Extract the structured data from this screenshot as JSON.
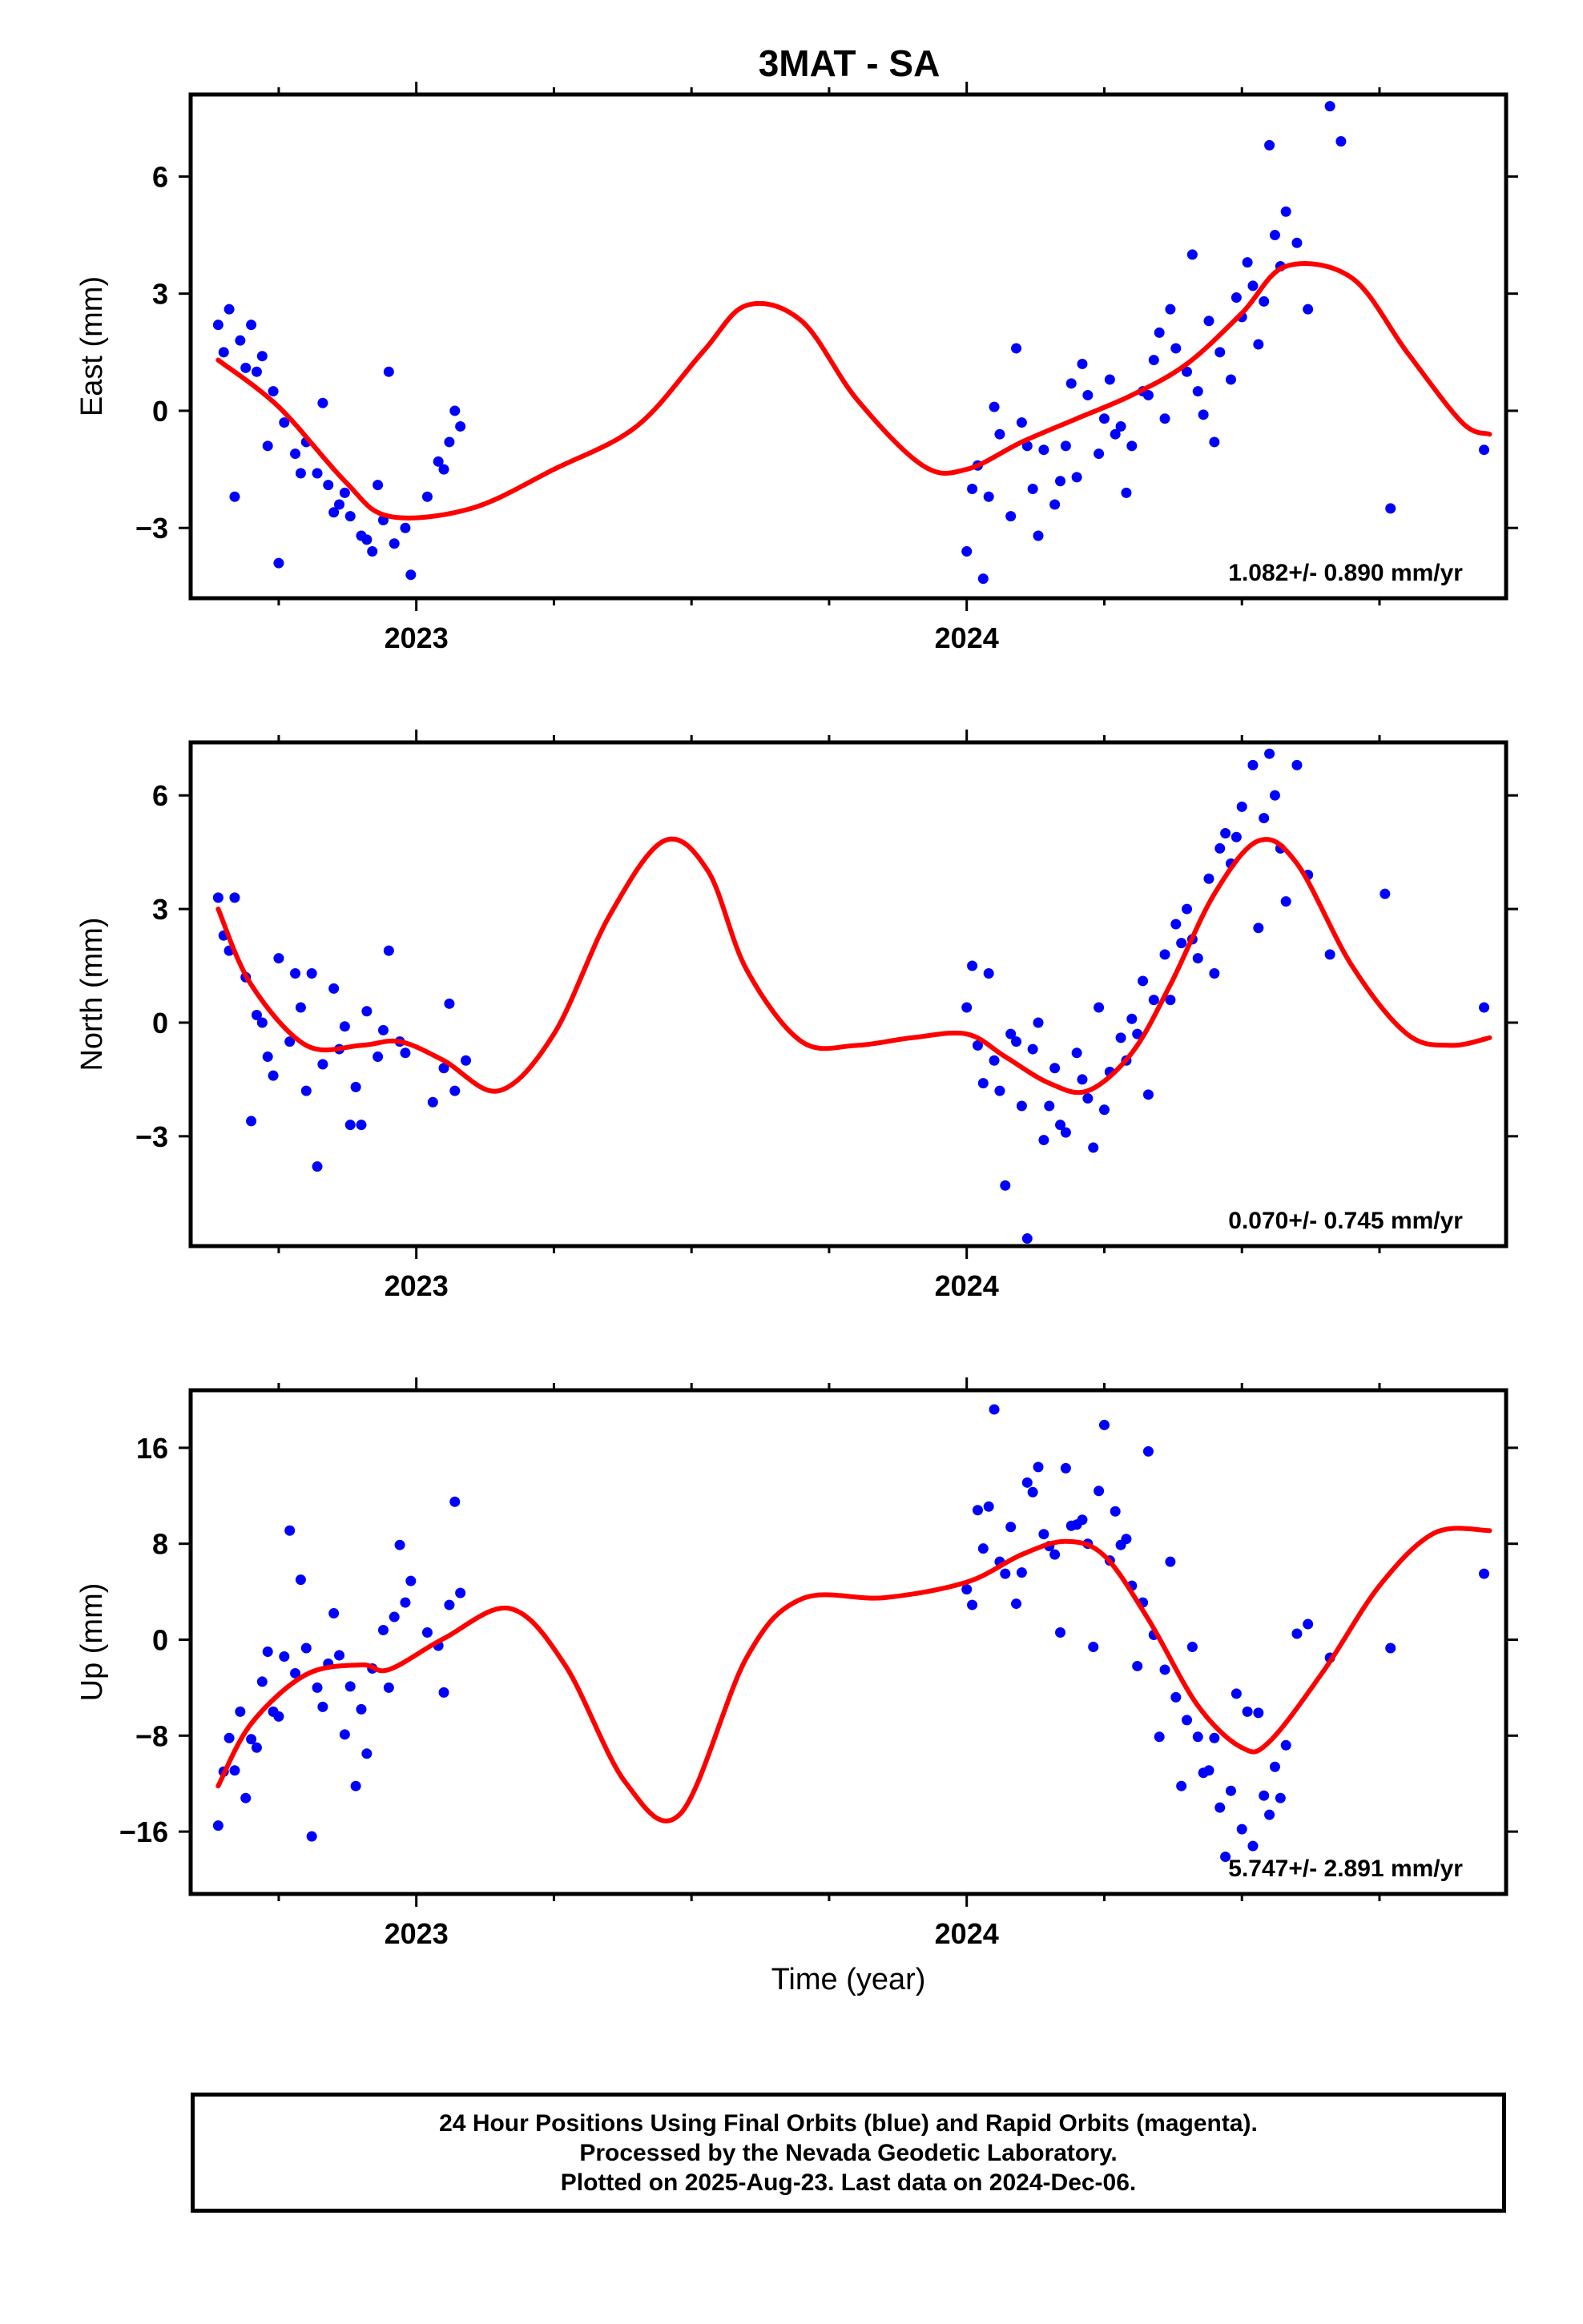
{
  "title": "3MAT - SA",
  "x_axis_label": "Time (year)",
  "footer": {
    "line1": "24 Hour Positions Using Final Orbits (blue) and Rapid Orbits (magenta).",
    "line2": "Processed by the Nevada Geodetic Laboratory.",
    "line3": "Plotted on 2025-Aug-23. Last data on 2024-Dec-06."
  },
  "colors": {
    "points": "#0000ff",
    "model": "#ff0000",
    "frame": "#000000"
  },
  "chart_data": [
    {
      "type": "scatter",
      "ylabel": "East (mm)",
      "xlim": [
        2022.59,
        2024.98
      ],
      "ylim": [
        -4.8,
        8.1
      ],
      "yticks": [
        -3,
        0,
        3,
        6
      ],
      "xticks": [
        2023,
        2024
      ],
      "rate_label": "1.082+/- 0.890 mm/yr",
      "model": {
        "x": [
          2022.64,
          2022.75,
          2022.87,
          2022.95,
          2023.1,
          2023.25,
          2023.4,
          2023.52,
          2023.6,
          2023.7,
          2023.8,
          2023.92,
          2024.0,
          2024.1,
          2024.2,
          2024.3,
          2024.4,
          2024.5,
          2024.58,
          2024.7,
          2024.8,
          2024.9,
          2024.95
        ],
        "y": [
          1.3,
          0.1,
          -1.8,
          -2.7,
          -2.5,
          -1.5,
          -0.4,
          1.5,
          2.7,
          2.3,
          0.3,
          -1.4,
          -1.5,
          -0.8,
          -0.2,
          0.4,
          1.2,
          2.5,
          3.7,
          3.4,
          1.5,
          -0.3,
          -0.6
        ]
      },
      "points": {
        "x": [
          2022.64,
          2022.65,
          2022.66,
          2022.68,
          2022.7,
          2022.72,
          2022.74,
          2022.76,
          2022.78,
          2022.8,
          2022.82,
          2022.84,
          2022.86,
          2022.88,
          2022.9,
          2022.92,
          2022.94,
          2022.96,
          2022.98,
          2023.02,
          2023.04,
          2023.06,
          2023.08,
          2022.67,
          2022.71,
          2022.75,
          2022.79,
          2022.83,
          2022.87,
          2022.91,
          2022.95,
          2022.99,
          2022.69,
          2022.73,
          2022.85,
          2022.93,
          2023.05,
          2023.07,
          2024.0,
          2024.02,
          2024.04,
          2024.06,
          2024.08,
          2024.1,
          2024.12,
          2024.14,
          2024.16,
          2024.18,
          2024.2,
          2024.22,
          2024.24,
          2024.26,
          2024.28,
          2024.3,
          2024.32,
          2024.34,
          2024.36,
          2024.38,
          2024.4,
          2024.42,
          2024.44,
          2024.46,
          2024.48,
          2024.5,
          2024.52,
          2024.54,
          2024.56,
          2024.58,
          2024.01,
          2024.05,
          2024.09,
          2024.13,
          2024.17,
          2024.21,
          2024.25,
          2024.29,
          2024.33,
          2024.37,
          2024.41,
          2024.45,
          2024.49,
          2024.53,
          2024.57,
          2024.03,
          2024.11,
          2024.19,
          2024.27,
          2024.35,
          2024.43,
          2024.51,
          2024.55,
          2024.6,
          2024.62,
          2024.66,
          2024.68,
          2024.77,
          2024.94
        ],
        "y": [
          2.2,
          1.5,
          2.6,
          1.8,
          2.2,
          1.4,
          0.5,
          -0.3,
          -1.1,
          -0.8,
          -1.6,
          -1.9,
          -2.4,
          -2.7,
          -3.2,
          -3.6,
          -2.8,
          -3.4,
          -3.0,
          -2.2,
          -1.3,
          -0.8,
          -0.4,
          -2.2,
          1.0,
          -3.9,
          -1.6,
          0.2,
          -2.1,
          -3.3,
          1.0,
          -4.2,
          1.1,
          -0.9,
          -2.6,
          -1.9,
          -1.5,
          0.0,
          -3.6,
          -1.4,
          -2.2,
          -0.6,
          -2.7,
          -0.3,
          -2.0,
          -1.0,
          -2.4,
          -0.9,
          -1.7,
          0.4,
          -1.1,
          0.8,
          -0.4,
          -0.9,
          0.5,
          1.3,
          -0.2,
          1.6,
          1.0,
          0.5,
          2.3,
          1.5,
          0.8,
          2.4,
          3.2,
          2.8,
          4.5,
          5.1,
          -2.0,
          0.1,
          1.6,
          -3.2,
          -1.8,
          1.2,
          -0.2,
          -2.1,
          0.4,
          2.6,
          4.0,
          -0.8,
          2.9,
          1.7,
          3.7,
          -4.3,
          -0.9,
          0.7,
          -0.6,
          2.0,
          -0.1,
          3.8,
          6.8,
          4.3,
          2.6,
          7.8,
          6.9,
          -2.5,
          -1.0
        ]
      }
    },
    {
      "type": "scatter",
      "ylabel": "North (mm)",
      "xlim": [
        2022.59,
        2024.98
      ],
      "ylim": [
        -5.9,
        7.4
      ],
      "yticks": [
        -3,
        0,
        3,
        6
      ],
      "xticks": [
        2023,
        2024
      ],
      "rate_label": "0.070+/- 0.745 mm/yr",
      "model": {
        "x": [
          2022.64,
          2022.7,
          2022.8,
          2022.9,
          2022.97,
          2023.05,
          2023.15,
          2023.25,
          2023.35,
          2023.45,
          2023.53,
          2023.6,
          2023.7,
          2023.8,
          2023.9,
          2024.0,
          2024.07,
          2024.15,
          2024.22,
          2024.3,
          2024.37,
          2024.45,
          2024.53,
          2024.6,
          2024.7,
          2024.8,
          2024.88,
          2024.95
        ],
        "y": [
          3.0,
          1.0,
          -0.6,
          -0.6,
          -0.5,
          -1.0,
          -1.8,
          -0.3,
          2.8,
          4.8,
          4.0,
          1.4,
          -0.5,
          -0.6,
          -0.4,
          -0.3,
          -0.9,
          -1.6,
          -1.8,
          -0.8,
          1.0,
          3.4,
          4.8,
          4.2,
          1.5,
          -0.3,
          -0.6,
          -0.4
        ]
      },
      "points": {
        "x": [
          2022.64,
          2022.65,
          2022.67,
          2022.69,
          2022.71,
          2022.73,
          2022.75,
          2022.77,
          2022.79,
          2022.81,
          2022.83,
          2022.85,
          2022.87,
          2022.89,
          2022.91,
          2022.93,
          2022.95,
          2022.97,
          2023.03,
          2023.05,
          2023.07,
          2023.09,
          2022.66,
          2022.7,
          2022.74,
          2022.78,
          2022.82,
          2022.86,
          2022.9,
          2022.94,
          2022.72,
          2022.8,
          2022.88,
          2022.98,
          2023.06,
          2024.0,
          2024.02,
          2024.04,
          2024.06,
          2024.08,
          2024.1,
          2024.12,
          2024.14,
          2024.16,
          2024.18,
          2024.2,
          2024.22,
          2024.24,
          2024.26,
          2024.28,
          2024.3,
          2024.32,
          2024.34,
          2024.36,
          2024.38,
          2024.4,
          2024.42,
          2024.44,
          2024.46,
          2024.48,
          2024.5,
          2024.52,
          2024.54,
          2024.56,
          2024.58,
          2024.01,
          2024.05,
          2024.09,
          2024.13,
          2024.17,
          2024.21,
          2024.25,
          2024.29,
          2024.33,
          2024.37,
          2024.41,
          2024.45,
          2024.49,
          2024.53,
          2024.57,
          2024.07,
          2024.15,
          2024.23,
          2024.31,
          2024.39,
          2024.47,
          2024.55,
          2024.03,
          2024.11,
          2024.6,
          2024.62,
          2024.66,
          2024.76,
          2024.94
        ],
        "y": [
          3.3,
          2.3,
          3.3,
          1.2,
          0.2,
          -0.9,
          1.7,
          -0.5,
          0.4,
          1.3,
          -1.1,
          0.9,
          -0.1,
          -1.7,
          0.3,
          -0.9,
          1.9,
          -0.5,
          -2.1,
          -1.2,
          -1.8,
          -1.0,
          1.9,
          -2.6,
          -1.4,
          1.3,
          -3.8,
          -0.7,
          -2.7,
          -0.2,
          0.0,
          -1.8,
          -2.7,
          -0.8,
          0.5,
          0.4,
          -0.6,
          1.3,
          -1.8,
          -0.3,
          -2.2,
          -0.7,
          -3.1,
          -1.2,
          -2.9,
          -0.8,
          -2.0,
          0.4,
          -1.3,
          -0.4,
          0.1,
          1.1,
          0.6,
          1.8,
          2.6,
          3.0,
          1.7,
          3.8,
          4.6,
          4.2,
          5.7,
          6.8,
          5.4,
          6.0,
          3.2,
          1.5,
          -1.0,
          -0.5,
          0.0,
          -2.7,
          -1.5,
          -2.3,
          -1.0,
          -1.9,
          0.6,
          2.2,
          1.3,
          4.9,
          2.5,
          4.6,
          -4.3,
          -2.2,
          -3.3,
          -0.3,
          2.1,
          5.0,
          7.1,
          -1.6,
          -5.7,
          6.8,
          3.9,
          1.8,
          3.4,
          0.4
        ]
      }
    },
    {
      "type": "scatter",
      "ylabel": "Up (mm)",
      "xlim": [
        2022.59,
        2024.98
      ],
      "ylim": [
        -21.2,
        20.8
      ],
      "yticks": [
        -16,
        -8,
        0,
        8,
        16
      ],
      "xticks": [
        2023,
        2024
      ],
      "rate_label": "5.747+/- 2.891 mm/yr",
      "model": {
        "x": [
          2022.64,
          2022.7,
          2022.8,
          2022.9,
          2022.95,
          2023.05,
          2023.17,
          2023.27,
          2023.38,
          2023.48,
          2023.6,
          2023.7,
          2023.85,
          2024.0,
          2024.1,
          2024.18,
          2024.25,
          2024.33,
          2024.42,
          2024.5,
          2024.55,
          2024.65,
          2024.75,
          2024.85,
          2024.95
        ],
        "y": [
          -12.2,
          -7.0,
          -2.9,
          -2.1,
          -2.5,
          0.1,
          2.6,
          -2.1,
          -11.9,
          -14.5,
          -1.5,
          3.4,
          3.5,
          4.8,
          7.1,
          8.2,
          7.0,
          1.7,
          -5.5,
          -9.0,
          -8.5,
          -2.5,
          4.5,
          8.9,
          9.1
        ]
      },
      "points": {
        "x": [
          2022.64,
          2022.65,
          2022.66,
          2022.68,
          2022.7,
          2022.72,
          2022.74,
          2022.76,
          2022.78,
          2022.8,
          2022.82,
          2022.84,
          2022.86,
          2022.88,
          2022.9,
          2022.92,
          2022.94,
          2022.96,
          2022.98,
          2023.02,
          2023.04,
          2023.06,
          2023.08,
          2022.67,
          2022.71,
          2022.75,
          2022.79,
          2022.83,
          2022.87,
          2022.91,
          2022.95,
          2022.99,
          2022.69,
          2022.73,
          2022.77,
          2022.81,
          2022.85,
          2022.89,
          2022.97,
          2023.05,
          2023.07,
          2024.0,
          2024.02,
          2024.04,
          2024.06,
          2024.08,
          2024.1,
          2024.12,
          2024.14,
          2024.16,
          2024.18,
          2024.2,
          2024.22,
          2024.24,
          2024.26,
          2024.28,
          2024.3,
          2024.32,
          2024.34,
          2024.36,
          2024.38,
          2024.4,
          2024.42,
          2024.44,
          2024.46,
          2024.48,
          2024.5,
          2024.52,
          2024.54,
          2024.56,
          2024.58,
          2024.01,
          2024.05,
          2024.09,
          2024.13,
          2024.17,
          2024.21,
          2024.25,
          2024.29,
          2024.33,
          2024.37,
          2024.41,
          2024.45,
          2024.49,
          2024.53,
          2024.57,
          2024.03,
          2024.07,
          2024.11,
          2024.15,
          2024.19,
          2024.23,
          2024.27,
          2024.31,
          2024.35,
          2024.39,
          2024.43,
          2024.47,
          2024.51,
          2024.55,
          2024.6,
          2024.62,
          2024.66,
          2024.77,
          2024.94
        ],
        "y": [
          -15.5,
          -11.0,
          -8.2,
          -6.0,
          -8.3,
          -3.5,
          -6.0,
          -1.4,
          -2.8,
          -0.7,
          -4.0,
          -2.0,
          -1.3,
          -3.9,
          -5.8,
          -2.4,
          0.8,
          1.9,
          3.1,
          0.6,
          -0.5,
          2.9,
          3.9,
          -10.9,
          -9.0,
          -6.4,
          5.0,
          -5.6,
          -7.9,
          -9.5,
          -4.0,
          4.9,
          -13.2,
          -1.0,
          9.1,
          -16.4,
          2.2,
          -12.2,
          7.9,
          -4.4,
          11.5,
          4.2,
          10.8,
          11.1,
          6.5,
          9.4,
          5.6,
          12.3,
          8.8,
          7.1,
          14.3,
          9.6,
          8.0,
          12.4,
          6.6,
          7.9,
          4.5,
          3.1,
          0.4,
          -2.5,
          -4.8,
          -6.7,
          -8.1,
          -10.9,
          -14.0,
          -12.6,
          -15.8,
          -17.2,
          -13.0,
          -10.6,
          -8.8,
          2.9,
          19.2,
          3.0,
          14.4,
          0.6,
          10.0,
          17.9,
          8.4,
          15.7,
          6.5,
          -0.6,
          -8.2,
          -4.5,
          -6.1,
          -13.2,
          7.6,
          5.5,
          13.1,
          7.8,
          9.5,
          -0.6,
          10.7,
          -2.2,
          -8.1,
          -12.2,
          -11.1,
          -18.1,
          -6.0,
          -14.6,
          0.5,
          1.3,
          -1.5,
          -0.7,
          5.5
        ]
      }
    }
  ]
}
